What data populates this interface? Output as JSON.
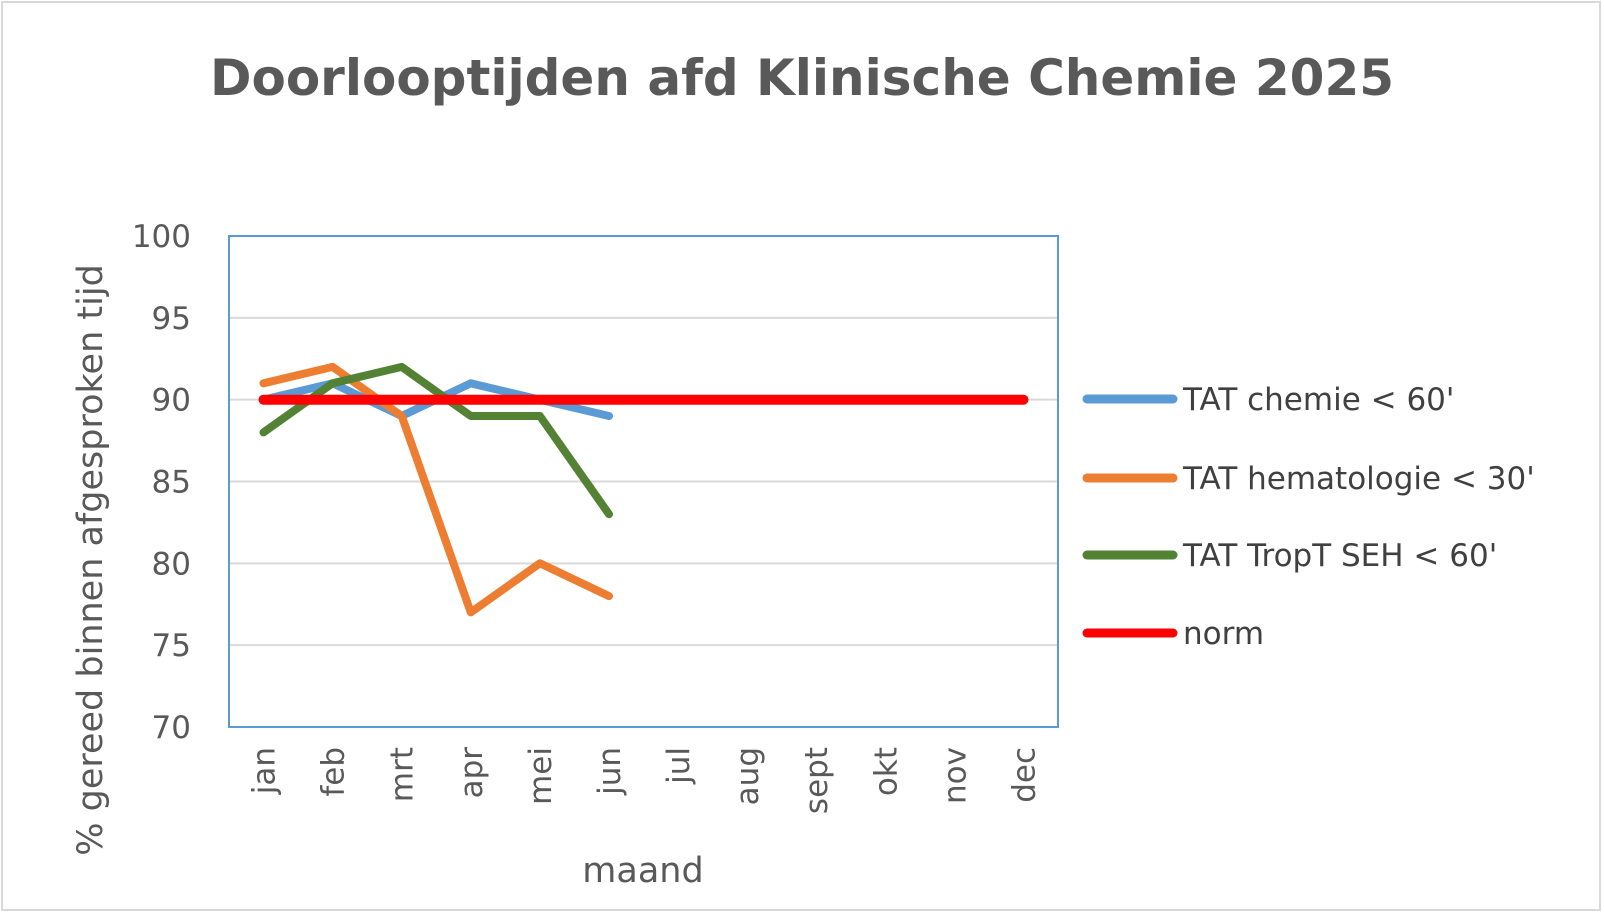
{
  "chart_data": {
    "type": "line",
    "title": "Doorlooptijden afd Klinische Chemie 2025",
    "xlabel": "maand",
    "ylabel": "% gereed binnen afgesproken tijd",
    "categories": [
      "jan",
      "feb",
      "mrt",
      "apr",
      "mei",
      "jun",
      "jul",
      "aug",
      "sept",
      "okt",
      "nov",
      "dec"
    ],
    "ylim": [
      70,
      100
    ],
    "yticks": [
      70,
      75,
      80,
      85,
      90,
      95,
      100
    ],
    "grid": true,
    "legend_position": "right",
    "series": [
      {
        "name": "TAT chemie < 60'",
        "color": "#5b9bd5",
        "values": [
          90,
          91,
          89,
          91,
          90,
          89,
          null,
          null,
          null,
          null,
          null,
          null
        ]
      },
      {
        "name": "TAT hematologie < 30'",
        "color": "#ed7d31",
        "values": [
          91,
          92,
          89,
          77,
          80,
          78,
          null,
          null,
          null,
          null,
          null,
          null
        ]
      },
      {
        "name": "TAT TropT SEH < 60'",
        "color": "#548235",
        "values": [
          88,
          91,
          92,
          89,
          89,
          83,
          null,
          null,
          null,
          null,
          null,
          null
        ]
      },
      {
        "name": "norm",
        "color": "#ff0000",
        "values": [
          90,
          90,
          90,
          90,
          90,
          90,
          90,
          90,
          90,
          90,
          90,
          90
        ]
      }
    ]
  }
}
